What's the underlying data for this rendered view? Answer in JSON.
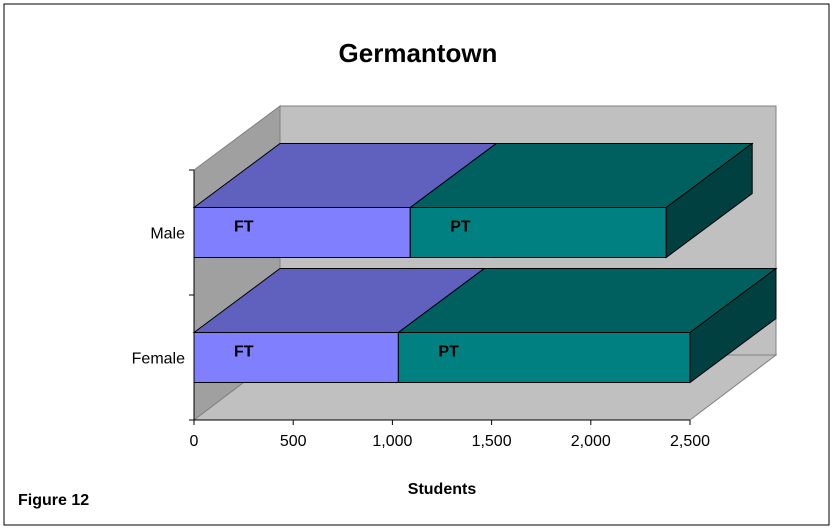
{
  "chart_data": {
    "type": "bar3d",
    "title": "Germantown",
    "x_label": "Students",
    "caption": "Figure 12",
    "categories": [
      "Male",
      "Female"
    ],
    "series": [
      {
        "name": "FT",
        "color": "#8080ff",
        "values": [
          1090,
          1030
        ]
      },
      {
        "name": "PT",
        "color": "#008080",
        "values": [
          1290,
          1470
        ]
      }
    ],
    "stacked": true,
    "xlim": [
      0,
      2500
    ],
    "xticks": [
      0,
      500,
      {
        "value": 1000,
        "label": "1,000"
      },
      {
        "value": 1500,
        "label": "1,500"
      },
      {
        "value": 2000,
        "label": "2,000"
      },
      {
        "value": 2500,
        "label": "2,500"
      }
    ]
  }
}
